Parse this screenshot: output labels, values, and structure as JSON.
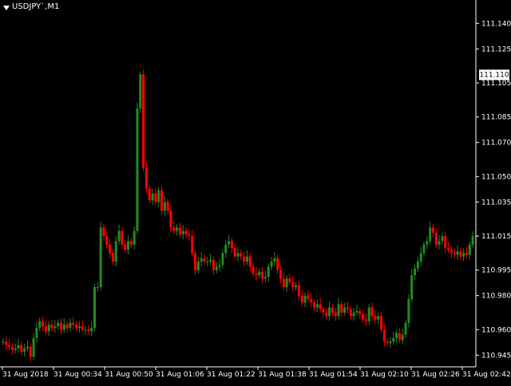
{
  "header": {
    "symbol_label": "USDJPY`,M1",
    "menu_icon": "triangle-down-icon"
  },
  "price_axis": {
    "ticks": [
      "111.140",
      "111.125",
      "111.105",
      "111.085",
      "111.070",
      "111.050",
      "111.035",
      "111.015",
      "110.995",
      "110.980",
      "110.960",
      "110.945"
    ],
    "current_price_label": "111.110"
  },
  "time_axis": {
    "ticks": [
      "31 Aug 2018",
      "31 Aug 00:34",
      "31 Aug 00:50",
      "31 Aug 01:06",
      "31 Aug 01:22",
      "31 Aug 01:38",
      "31 Aug 01:54",
      "31 Aug 02:10",
      "31 Aug 02:26",
      "31 Aug 02:42"
    ]
  },
  "colors": {
    "background": "#000000",
    "bull": "#228B22",
    "bear": "#FF0000",
    "axis": "#ffffff",
    "text": "#ffffff"
  },
  "chart_data": {
    "type": "candlestick",
    "symbol": "USDJPY`",
    "timeframe": "M1",
    "ylim": [
      110.94,
      111.15
    ],
    "y_ticks": [
      111.14,
      111.125,
      111.105,
      111.085,
      111.07,
      111.05,
      111.035,
      111.015,
      110.995,
      110.98,
      110.96,
      110.945
    ],
    "current_price": 111.11,
    "x_tick_labels": [
      "31 Aug 2018",
      "31 Aug 00:34",
      "31 Aug 00:50",
      "31 Aug 01:06",
      "31 Aug 01:22",
      "31 Aug 01:38",
      "31 Aug 01:54",
      "31 Aug 02:10",
      "31 Aug 02:26",
      "31 Aug 02:42"
    ],
    "close_path": [
      110.953,
      110.951,
      110.95,
      110.948,
      110.949,
      110.951,
      110.947,
      110.949,
      110.95,
      110.944,
      110.955,
      110.961,
      110.965,
      110.962,
      110.959,
      110.963,
      110.961,
      110.962,
      110.964,
      110.96,
      110.963,
      110.961,
      110.964,
      110.963,
      110.961,
      110.962,
      110.96,
      110.96,
      110.959,
      110.961,
      110.985,
      110.985,
      111.02,
      111.015,
      111.01,
      111.005,
      111.0,
      111.012,
      111.018,
      111.01,
      111.007,
      111.012,
      111.01,
      111.018,
      111.09,
      111.11,
      111.055,
      111.043,
      111.036,
      111.04,
      111.035,
      111.042,
      111.03,
      111.035,
      111.03,
      111.02,
      111.018,
      111.02,
      111.016,
      111.018,
      111.016,
      111.015,
      111.005,
      110.995,
      111.0,
      111.002,
      111.0,
      111.0,
      111.001,
      110.995,
      110.997,
      110.998,
      111.005,
      111.01,
      111.012,
      111.008,
      111.003,
      111.005,
      111.003,
      111.0,
      111.003,
      110.997,
      110.993,
      110.992,
      110.994,
      110.99,
      110.991,
      110.997,
      111.0,
      111.002,
      110.995,
      110.99,
      110.985,
      110.99,
      110.988,
      110.985,
      110.986,
      110.98,
      110.976,
      110.98,
      110.978,
      110.976,
      110.973,
      110.975,
      110.972,
      110.97,
      110.968,
      110.973,
      110.97,
      110.968,
      110.975,
      110.97,
      110.973,
      110.972,
      110.968,
      110.97,
      110.971,
      110.969,
      110.966,
      110.965,
      110.973,
      110.968,
      110.966,
      110.968,
      110.96,
      110.953,
      110.952,
      110.953,
      110.955,
      110.958,
      110.954,
      110.957,
      110.964,
      110.978,
      110.992,
      110.996,
      111.0,
      111.005,
      111.01,
      111.012,
      111.02,
      111.017,
      111.01,
      111.012,
      111.015,
      111.008,
      111.007,
      111.005,
      111.004,
      111.006,
      111.003,
      111.005,
      111.004,
      111.01,
      111.015
    ]
  }
}
